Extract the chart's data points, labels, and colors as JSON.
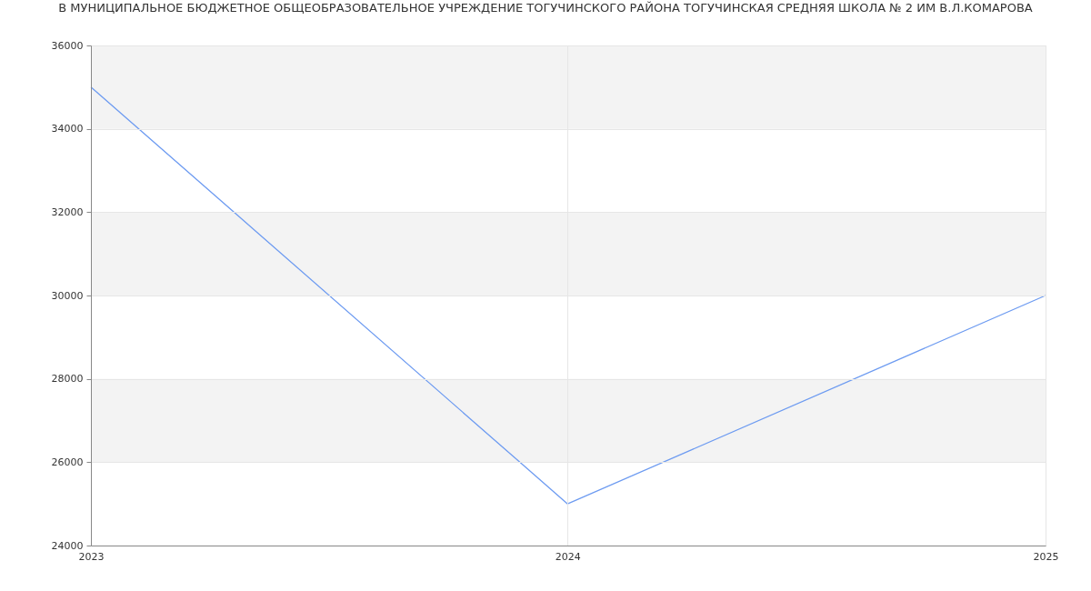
{
  "chart_data": {
    "type": "line",
    "title": "В МУНИЦИПАЛЬНОЕ БЮДЖЕТНОЕ ОБЩЕОБРАЗОВАТЕЛЬНОЕ УЧРЕЖДЕНИЕ ТОГУЧИНСКОГО РАЙОНА ТОГУЧИНСКАЯ СРЕДНЯЯ ШКОЛА № 2 ИМ В.Л.КОМАРОВА",
    "x": [
      "2023",
      "2024",
      "2025"
    ],
    "values": [
      35000,
      25000,
      30000
    ],
    "color": "#6d9bf1",
    "line_style": "solid",
    "xlim": [
      "2023",
      "2025"
    ],
    "xticks": [
      "2023",
      "2024",
      "2025"
    ],
    "ylim": [
      24000,
      36000
    ],
    "yticks": [
      24000,
      26000,
      28000,
      30000,
      32000,
      34000,
      36000
    ],
    "grid": true,
    "bands": [
      {
        "axis": "y",
        "from": 26000,
        "to": 28000,
        "color": "#f3f3f3"
      },
      {
        "axis": "y",
        "from": 30000,
        "to": 32000,
        "color": "#f3f3f3"
      },
      {
        "axis": "y",
        "from": 34000,
        "to": 36000,
        "color": "#f3f3f3"
      }
    ]
  }
}
